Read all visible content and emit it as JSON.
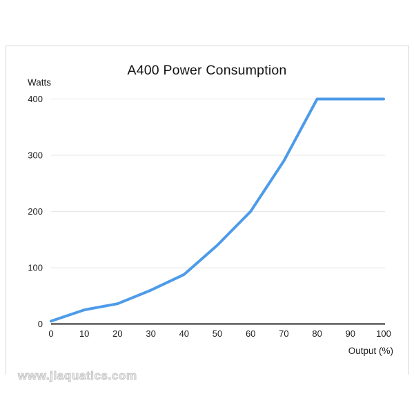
{
  "page": {
    "watermark": "www.jlaquatics.com"
  },
  "chart_data": {
    "type": "line",
    "title": "A400 Power Consumption",
    "xlabel": "Output (%)",
    "ylabel": "Watts",
    "x": [
      0,
      10,
      20,
      30,
      40,
      50,
      60,
      70,
      80,
      90,
      100
    ],
    "y": [
      5,
      25,
      36,
      60,
      88,
      140,
      200,
      290,
      400,
      400,
      400
    ],
    "xticks": [
      0,
      10,
      20,
      30,
      40,
      50,
      60,
      70,
      80,
      90,
      100
    ],
    "yticks": [
      0,
      100,
      200,
      300,
      400
    ],
    "xlim": [
      0,
      100
    ],
    "ylim": [
      0,
      400
    ],
    "grid": "horizontal-light",
    "legend": "none",
    "colors": {
      "line": "#4d9be9",
      "grid": "#e7e7e7",
      "axis": "#000000",
      "tick_text": "#1c1c1c",
      "title_text": "#111111",
      "card_border": "#d6d6d6",
      "watermark": "#c9c9c9",
      "background": "#ffffff"
    }
  }
}
